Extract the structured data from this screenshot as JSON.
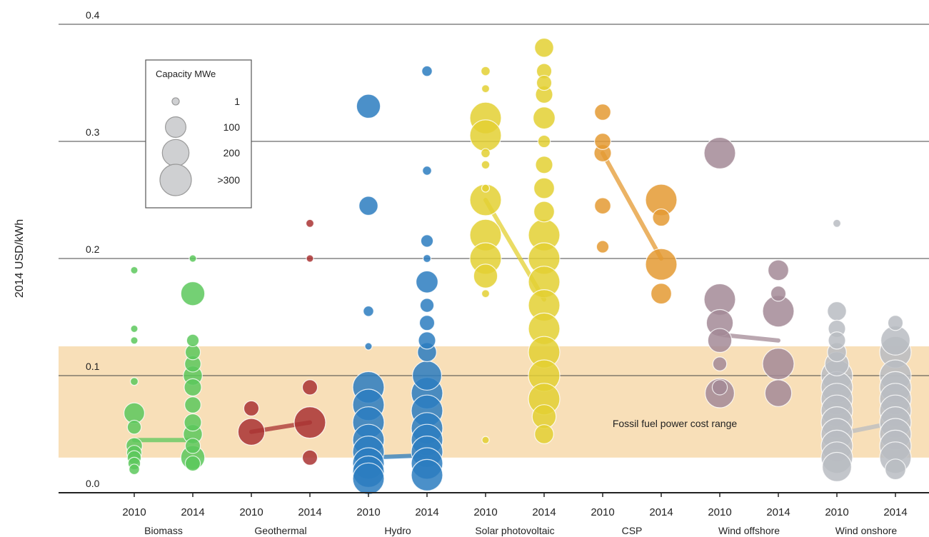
{
  "chart_data": {
    "type": "scatter",
    "title": "",
    "xlabel": "",
    "ylabel": "2014 USD/kWh",
    "ylim": [
      0,
      0.4
    ],
    "y_ticks": [
      "0.0",
      "0.1",
      "0.2",
      "0.3",
      "0.4"
    ],
    "grid": "horizontal",
    "legend": {
      "title": "Capacity MWe",
      "placement": "top-left",
      "entries": [
        {
          "label": "1",
          "mw": 1
        },
        {
          "label": "100",
          "mw": 100
        },
        {
          "label": "200",
          "mw": 200
        },
        {
          "label": ">300",
          "mw": 300
        }
      ]
    },
    "band": {
      "label": "Fossil fuel power cost range",
      "y_range": [
        0.03,
        0.125
      ],
      "color": "#f8dfb8"
    },
    "technologies": [
      {
        "name": "Biomass",
        "color": "#5cc85c",
        "years": [
          "2010",
          "2014"
        ],
        "average": [
          0.045,
          0.045
        ],
        "points": [
          [
            0,
            0.19,
            1
          ],
          [
            0,
            0.14,
            1
          ],
          [
            0,
            0.13,
            1
          ],
          [
            0,
            0.095,
            2
          ],
          [
            0,
            0.068,
            100
          ],
          [
            0,
            0.056,
            30
          ],
          [
            0,
            0.04,
            50
          ],
          [
            0,
            0.034,
            40
          ],
          [
            0,
            0.03,
            30
          ],
          [
            0,
            0.025,
            20
          ],
          [
            0,
            0.02,
            10
          ],
          [
            1,
            0.2,
            1
          ],
          [
            1,
            0.17,
            150
          ],
          [
            1,
            0.13,
            20
          ],
          [
            1,
            0.12,
            40
          ],
          [
            1,
            0.11,
            50
          ],
          [
            1,
            0.1,
            80
          ],
          [
            1,
            0.09,
            60
          ],
          [
            1,
            0.075,
            50
          ],
          [
            1,
            0.06,
            60
          ],
          [
            1,
            0.05,
            80
          ],
          [
            1,
            0.04,
            40
          ],
          [
            1,
            0.03,
            150
          ],
          [
            1,
            0.025,
            40
          ]
        ]
      },
      {
        "name": "Geothermal",
        "color": "#a93232",
        "years": [
          "2010",
          "2014"
        ],
        "average": [
          0.052,
          0.06
        ],
        "points": [
          [
            0,
            0.072,
            40
          ],
          [
            0,
            0.052,
            200
          ],
          [
            1,
            0.23,
            2
          ],
          [
            1,
            0.2,
            1
          ],
          [
            1,
            0.09,
            40
          ],
          [
            1,
            0.06,
            300
          ],
          [
            1,
            0.03,
            40
          ]
        ]
      },
      {
        "name": "Hydro",
        "color": "#2b7cbf",
        "years": [
          "2010",
          "2014"
        ],
        "average": [
          0.03,
          0.032
        ],
        "points": [
          [
            0,
            0.33,
            150
          ],
          [
            0,
            0.245,
            80
          ],
          [
            0,
            0.155,
            10
          ],
          [
            0,
            0.125,
            1
          ],
          [
            0,
            0.09,
            300
          ],
          [
            0,
            0.075,
            300
          ],
          [
            0,
            0.06,
            300
          ],
          [
            0,
            0.045,
            300
          ],
          [
            0,
            0.035,
            300
          ],
          [
            0,
            0.025,
            300
          ],
          [
            0,
            0.018,
            300
          ],
          [
            0,
            0.012,
            300
          ],
          [
            1,
            0.36,
            10
          ],
          [
            1,
            0.275,
            5
          ],
          [
            1,
            0.215,
            20
          ],
          [
            1,
            0.2,
            2
          ],
          [
            1,
            0.18,
            120
          ],
          [
            1,
            0.16,
            30
          ],
          [
            1,
            0.145,
            40
          ],
          [
            1,
            0.13,
            60
          ],
          [
            1,
            0.12,
            80
          ],
          [
            1,
            0.1,
            250
          ],
          [
            1,
            0.085,
            300
          ],
          [
            1,
            0.07,
            300
          ],
          [
            1,
            0.055,
            300
          ],
          [
            1,
            0.045,
            300
          ],
          [
            1,
            0.035,
            300
          ],
          [
            1,
            0.025,
            300
          ],
          [
            1,
            0.015,
            300
          ]
        ]
      },
      {
        "name": "Solar photovoltaic",
        "color": "#e3d032",
        "years": [
          "2010",
          "2014"
        ],
        "average": [
          0.25,
          0.165
        ],
        "points": [
          [
            0,
            0.36,
            5
          ],
          [
            0,
            0.345,
            2
          ],
          [
            0,
            0.32,
            300
          ],
          [
            0,
            0.305,
            300
          ],
          [
            0,
            0.29,
            5
          ],
          [
            0,
            0.28,
            3
          ],
          [
            0,
            0.26,
            2
          ],
          [
            0,
            0.25,
            300
          ],
          [
            0,
            0.22,
            300
          ],
          [
            0,
            0.2,
            300
          ],
          [
            0,
            0.185,
            150
          ],
          [
            0,
            0.17,
            2
          ],
          [
            0,
            0.045,
            1
          ],
          [
            1,
            0.38,
            80
          ],
          [
            1,
            0.36,
            40
          ],
          [
            1,
            0.35,
            40
          ],
          [
            1,
            0.34,
            60
          ],
          [
            1,
            0.32,
            120
          ],
          [
            1,
            0.3,
            20
          ],
          [
            1,
            0.28,
            60
          ],
          [
            1,
            0.26,
            100
          ],
          [
            1,
            0.24,
            100
          ],
          [
            1,
            0.22,
            300
          ],
          [
            1,
            0.2,
            300
          ],
          [
            1,
            0.18,
            300
          ],
          [
            1,
            0.16,
            300
          ],
          [
            1,
            0.14,
            300
          ],
          [
            1,
            0.12,
            300
          ],
          [
            1,
            0.1,
            300
          ],
          [
            1,
            0.08,
            300
          ],
          [
            1,
            0.065,
            150
          ],
          [
            1,
            0.05,
            80
          ]
        ]
      },
      {
        "name": "CSP",
        "color": "#e49a32",
        "years": [
          "2010",
          "2014"
        ],
        "average": [
          0.29,
          0.2
        ],
        "points": [
          [
            0,
            0.325,
            50
          ],
          [
            0,
            0.3,
            50
          ],
          [
            0,
            0.29,
            60
          ],
          [
            0,
            0.245,
            50
          ],
          [
            0,
            0.21,
            20
          ],
          [
            1,
            0.25,
            300
          ],
          [
            1,
            0.235,
            60
          ],
          [
            1,
            0.195,
            300
          ],
          [
            1,
            0.17,
            100
          ]
        ]
      },
      {
        "name": "Wind offshore",
        "color": "#a38a96",
        "years": [
          "2010",
          "2014"
        ],
        "average": [
          0.135,
          0.13
        ],
        "points": [
          [
            0,
            0.29,
            300
          ],
          [
            0,
            0.165,
            300
          ],
          [
            0,
            0.145,
            200
          ],
          [
            0,
            0.13,
            150
          ],
          [
            0,
            0.11,
            30
          ],
          [
            0,
            0.09,
            40
          ],
          [
            0,
            0.085,
            250
          ],
          [
            1,
            0.19,
            100
          ],
          [
            1,
            0.17,
            40
          ],
          [
            1,
            0.155,
            300
          ],
          [
            1,
            0.11,
            300
          ],
          [
            1,
            0.085,
            200
          ]
        ]
      },
      {
        "name": "Wind onshore",
        "color": "#b9bcc2",
        "years": [
          "2010",
          "2014"
        ],
        "average": [
          0.05,
          0.06
        ],
        "points": [
          [
            0,
            0.23,
            2
          ],
          [
            0,
            0.155,
            80
          ],
          [
            0,
            0.14,
            60
          ],
          [
            0,
            0.13,
            60
          ],
          [
            0,
            0.12,
            80
          ],
          [
            0,
            0.11,
            150
          ],
          [
            0,
            0.1,
            300
          ],
          [
            0,
            0.09,
            300
          ],
          [
            0,
            0.08,
            300
          ],
          [
            0,
            0.07,
            300
          ],
          [
            0,
            0.06,
            300
          ],
          [
            0,
            0.05,
            300
          ],
          [
            0,
            0.04,
            300
          ],
          [
            0,
            0.03,
            300
          ],
          [
            0,
            0.022,
            250
          ],
          [
            1,
            0.145,
            40
          ],
          [
            1,
            0.13,
            250
          ],
          [
            1,
            0.12,
            300
          ],
          [
            1,
            0.1,
            300
          ],
          [
            1,
            0.09,
            300
          ],
          [
            1,
            0.08,
            300
          ],
          [
            1,
            0.07,
            300
          ],
          [
            1,
            0.06,
            300
          ],
          [
            1,
            0.05,
            300
          ],
          [
            1,
            0.04,
            300
          ],
          [
            1,
            0.03,
            300
          ],
          [
            1,
            0.02,
            100
          ]
        ]
      }
    ]
  }
}
